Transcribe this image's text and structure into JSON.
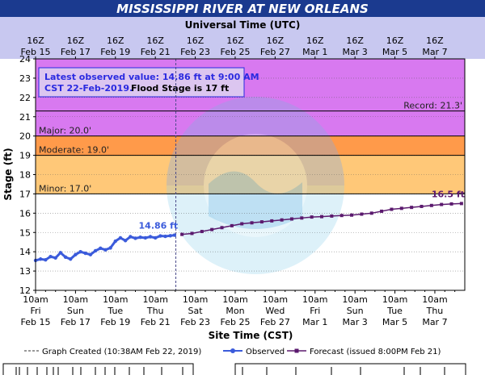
{
  "title": "MISSISSIPPI RIVER AT NEW ORLEANS",
  "colors": {
    "title_bg": "#1b3a8f",
    "top_axis_bg": "#c8c8f0",
    "record_band": "#d879f0",
    "major_band": "#ff6a6a",
    "moderate_band": "#ff9a4a",
    "minor_band": "#ffc878",
    "observed": "#3b5bdb",
    "forecast": "#5b1a6e",
    "info_box_bg": "#dcc6f0"
  },
  "info_box": {
    "line1": "Latest observed value: 14.86 ft at 9:00 AM",
    "line2_blue": "CST 22-Feb-2019.",
    "line2_black": "Flood Stage is 17 ft"
  },
  "legend": {
    "graph_created": "Graph Created (10:38AM Feb 22, 2019)",
    "observed": "Observed",
    "forecast": "Forecast (issued 8:00PM Feb 21)"
  },
  "chart_data": {
    "type": "line",
    "title": "MISSISSIPPI RIVER AT NEW ORLEANS",
    "xlabel": "Site Time (CST)",
    "x2label": "Universal Time (UTC)",
    "ylabel": "Stage (ft)",
    "ylim": [
      12,
      24
    ],
    "yticks": [
      12,
      13,
      14,
      15,
      16,
      17,
      18,
      19,
      20,
      21,
      22,
      23,
      24
    ],
    "xlim": [
      "2019-02-15T10:00",
      "2019-03-08T22:00"
    ],
    "bottom_ticks": [
      {
        "time": "10am",
        "day": "Fri",
        "date": "Feb 15"
      },
      {
        "time": "10am",
        "day": "Sun",
        "date": "Feb 17"
      },
      {
        "time": "10am",
        "day": "Tue",
        "date": "Feb 19"
      },
      {
        "time": "10am",
        "day": "Thu",
        "date": "Feb 21"
      },
      {
        "time": "10am",
        "day": "Sat",
        "date": "Feb 23"
      },
      {
        "time": "10am",
        "day": "Mon",
        "date": "Feb 25"
      },
      {
        "time": "10am",
        "day": "Wed",
        "date": "Feb 27"
      },
      {
        "time": "10am",
        "day": "Fri",
        "date": "Mar 1"
      },
      {
        "time": "10am",
        "day": "Sun",
        "date": "Mar 3"
      },
      {
        "time": "10am",
        "day": "Tue",
        "date": "Mar 5"
      },
      {
        "time": "10am",
        "day": "Thu",
        "date": "Mar 7"
      }
    ],
    "top_ticks": [
      {
        "time": "16Z",
        "date": "Feb 15"
      },
      {
        "time": "16Z",
        "date": "Feb 17"
      },
      {
        "time": "16Z",
        "date": "Feb 19"
      },
      {
        "time": "16Z",
        "date": "Feb 21"
      },
      {
        "time": "16Z",
        "date": "Feb 23"
      },
      {
        "time": "16Z",
        "date": "Feb 25"
      },
      {
        "time": "16Z",
        "date": "Feb 27"
      },
      {
        "time": "16Z",
        "date": "Mar 1"
      },
      {
        "time": "16Z",
        "date": "Mar 3"
      },
      {
        "time": "16Z",
        "date": "Mar 5"
      },
      {
        "time": "16Z",
        "date": "Mar 7"
      }
    ],
    "flood_categories": [
      {
        "name": "Record",
        "label": "Record: 21.3'",
        "value": 21.3
      },
      {
        "name": "Major",
        "label": "Major: 20.0'",
        "value": 20.0
      },
      {
        "name": "Moderate",
        "label": "Moderate: 19.0'",
        "value": 19.0
      },
      {
        "name": "Minor",
        "label": "Minor: 17.0'",
        "value": 17.0
      }
    ],
    "graph_created": "2019-02-22T10:38",
    "series": [
      {
        "name": "Observed",
        "last_label": "14.86 ft",
        "points": [
          [
            "2019-02-15T10:00",
            13.55
          ],
          [
            "2019-02-15T16:00",
            13.62
          ],
          [
            "2019-02-15T22:00",
            13.58
          ],
          [
            "2019-02-16T04:00",
            13.75
          ],
          [
            "2019-02-16T10:00",
            13.68
          ],
          [
            "2019-02-16T16:00",
            13.95
          ],
          [
            "2019-02-16T22:00",
            13.72
          ],
          [
            "2019-02-17T04:00",
            13.62
          ],
          [
            "2019-02-17T10:00",
            13.85
          ],
          [
            "2019-02-17T16:00",
            14.0
          ],
          [
            "2019-02-17T22:00",
            13.92
          ],
          [
            "2019-02-18T04:00",
            13.85
          ],
          [
            "2019-02-18T10:00",
            14.05
          ],
          [
            "2019-02-18T16:00",
            14.18
          ],
          [
            "2019-02-18T22:00",
            14.1
          ],
          [
            "2019-02-19T04:00",
            14.2
          ],
          [
            "2019-02-19T10:00",
            14.55
          ],
          [
            "2019-02-19T16:00",
            14.72
          ],
          [
            "2019-02-19T22:00",
            14.58
          ],
          [
            "2019-02-20T04:00",
            14.78
          ],
          [
            "2019-02-20T10:00",
            14.7
          ],
          [
            "2019-02-20T16:00",
            14.75
          ],
          [
            "2019-02-20T22:00",
            14.72
          ],
          [
            "2019-02-21T04:00",
            14.78
          ],
          [
            "2019-02-21T10:00",
            14.72
          ],
          [
            "2019-02-21T16:00",
            14.82
          ],
          [
            "2019-02-21T22:00",
            14.8
          ],
          [
            "2019-02-22T04:00",
            14.83
          ],
          [
            "2019-02-22T09:00",
            14.86
          ]
        ]
      },
      {
        "name": "Forecast (issued 8:00PM Feb 21)",
        "last_label": "16.5 ft",
        "points": [
          [
            "2019-02-22T18:00",
            14.9
          ],
          [
            "2019-02-23T06:00",
            14.95
          ],
          [
            "2019-02-23T18:00",
            15.05
          ],
          [
            "2019-02-24T06:00",
            15.15
          ],
          [
            "2019-02-24T18:00",
            15.25
          ],
          [
            "2019-02-25T06:00",
            15.35
          ],
          [
            "2019-02-25T18:00",
            15.45
          ],
          [
            "2019-02-26T06:00",
            15.5
          ],
          [
            "2019-02-26T18:00",
            15.55
          ],
          [
            "2019-02-27T06:00",
            15.6
          ],
          [
            "2019-02-27T18:00",
            15.65
          ],
          [
            "2019-02-28T06:00",
            15.7
          ],
          [
            "2019-02-28T18:00",
            15.75
          ],
          [
            "2019-03-01T06:00",
            15.8
          ],
          [
            "2019-03-01T18:00",
            15.82
          ],
          [
            "2019-03-02T06:00",
            15.85
          ],
          [
            "2019-03-02T18:00",
            15.88
          ],
          [
            "2019-03-03T06:00",
            15.9
          ],
          [
            "2019-03-03T18:00",
            15.95
          ],
          [
            "2019-03-04T06:00",
            16.0
          ],
          [
            "2019-03-04T18:00",
            16.1
          ],
          [
            "2019-03-05T06:00",
            16.2
          ],
          [
            "2019-03-05T18:00",
            16.25
          ],
          [
            "2019-03-06T06:00",
            16.3
          ],
          [
            "2019-03-06T18:00",
            16.35
          ],
          [
            "2019-03-07T06:00",
            16.4
          ],
          [
            "2019-03-07T18:00",
            16.45
          ],
          [
            "2019-03-08T06:00",
            16.48
          ],
          [
            "2019-03-08T18:00",
            16.5
          ]
        ]
      }
    ]
  }
}
